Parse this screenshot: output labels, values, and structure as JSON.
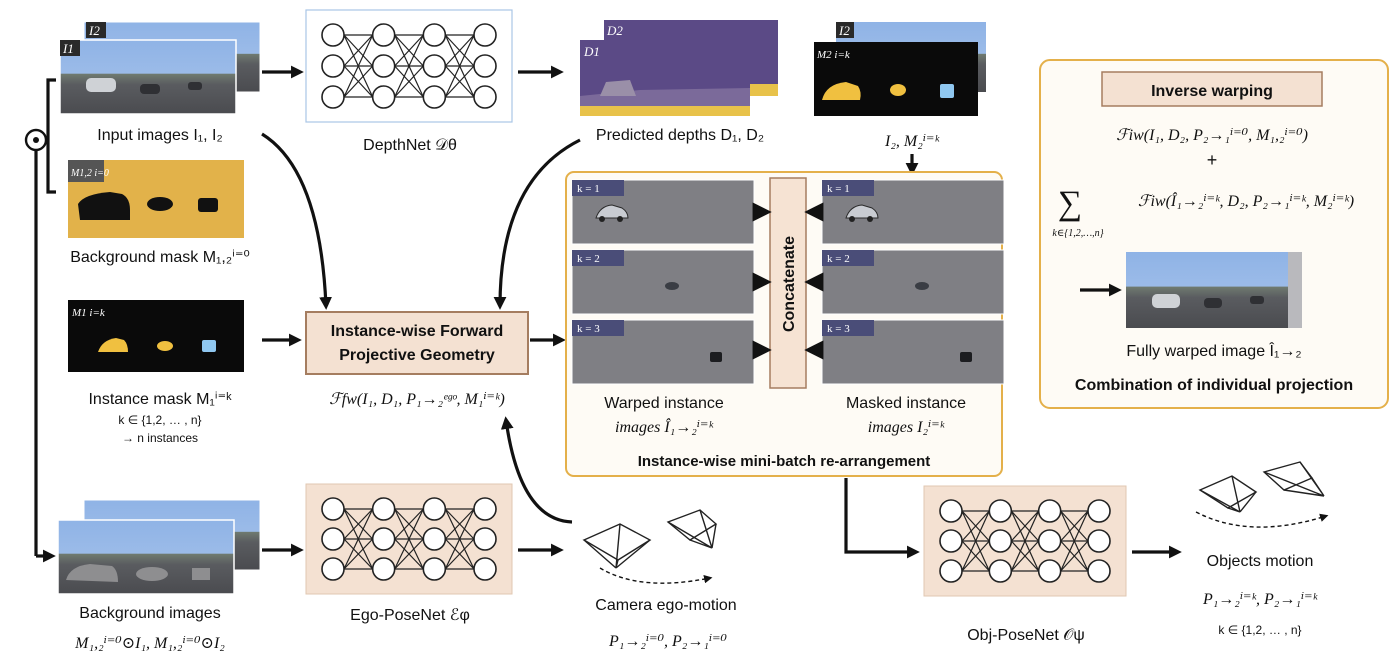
{
  "colors": {
    "sky": "#8fb3e6",
    "road": "#5a5c60",
    "depth_purple": "#5b4a86",
    "depth_yellow": "#e8c24a",
    "mask_bg": "#e2b24a",
    "instance_yellow": "#f0c040",
    "instance_blue": "#8fc7f0",
    "gray_panel": "#7f7f84",
    "beige_box": "#f4e1d2",
    "beige_border": "#a57d60",
    "panel_border": "#e4b04a",
    "concat_fill": "#f6e3d3"
  },
  "inputs": {
    "tag1": "I1",
    "tag2": "I2",
    "caption": "Input images I₁, I₂"
  },
  "background_mask": {
    "tag": "M1,2 i=0",
    "caption": "Background mask M₁,₂ⁱ⁼⁰"
  },
  "instance_mask": {
    "tag": "M1 i=k",
    "caption": "Instance mask M₁ⁱ⁼ᵏ",
    "sub1": "k ∈ {1,2, … , n}",
    "sub2": "→ n instances"
  },
  "background_images": {
    "caption": "Background images",
    "formula": "M₁,₂ⁱ⁼⁰⊙I₁, M₁,₂ⁱ⁼⁰⊙I₂"
  },
  "depthnet": {
    "caption": "DepthNet 𝒟θ"
  },
  "egoposenet": {
    "caption": "Ego-PoseNet ℰφ"
  },
  "objposenet": {
    "caption": "Obj-PoseNet 𝒪ψ"
  },
  "depths": {
    "tag1": "D1",
    "tag2": "D2",
    "caption": "Predicted depths D₁, D₂"
  },
  "i2_masks": {
    "tag1": "I2",
    "tag2": "M2 i=k",
    "caption": "I₂, M₂ⁱ⁼ᵏ"
  },
  "forward_box": {
    "line1": "Instance-wise Forward",
    "line2": "Projective Geometry",
    "formula": "ℱfw(I₁, D₁, P₁→₂ᵉᵍᵒ, M₁ⁱ⁼ᵏ)"
  },
  "minibatch": {
    "k_labels": [
      "k = 1",
      "k = 2",
      "k = 3"
    ],
    "concatenate": "Concatenate",
    "warped_line1": "Warped instance",
    "warped_line2": "images Î₁→₂ⁱ⁼ᵏ",
    "masked_line1": "Masked instance",
    "masked_line2": "images I₂ⁱ⁼ᵏ",
    "title": "Instance-wise mini-batch re-arrangement"
  },
  "camera": {
    "caption": "Camera ego-motion",
    "formula": "P₁→₂ⁱ⁼⁰, P₂→₁ⁱ⁼⁰"
  },
  "objects": {
    "caption": "Objects motion",
    "formula": "P₁→₂ⁱ⁼ᵏ, P₂→₁ⁱ⁼ᵏ",
    "sub": "k ∈ {1,2, … , n}"
  },
  "inverse": {
    "title": "Inverse warping",
    "formula1": "ℱiw(I₁, D₂, P₂→₁ⁱ⁼⁰, M₁,₂ⁱ⁼⁰)",
    "plus": "+",
    "sigma": "∑",
    "sigma_sub": "k∈{1,2,…,n}",
    "formula2": "ℱiw(Î₁→₂ⁱ⁼ᵏ, D₂, P₂→₁ⁱ⁼ᵏ, M₂ⁱ⁼ᵏ)",
    "fully_caption": "Fully warped image Î₁→₂",
    "combination": "Combination of individual projection"
  },
  "multiply_symbol": "⊙"
}
